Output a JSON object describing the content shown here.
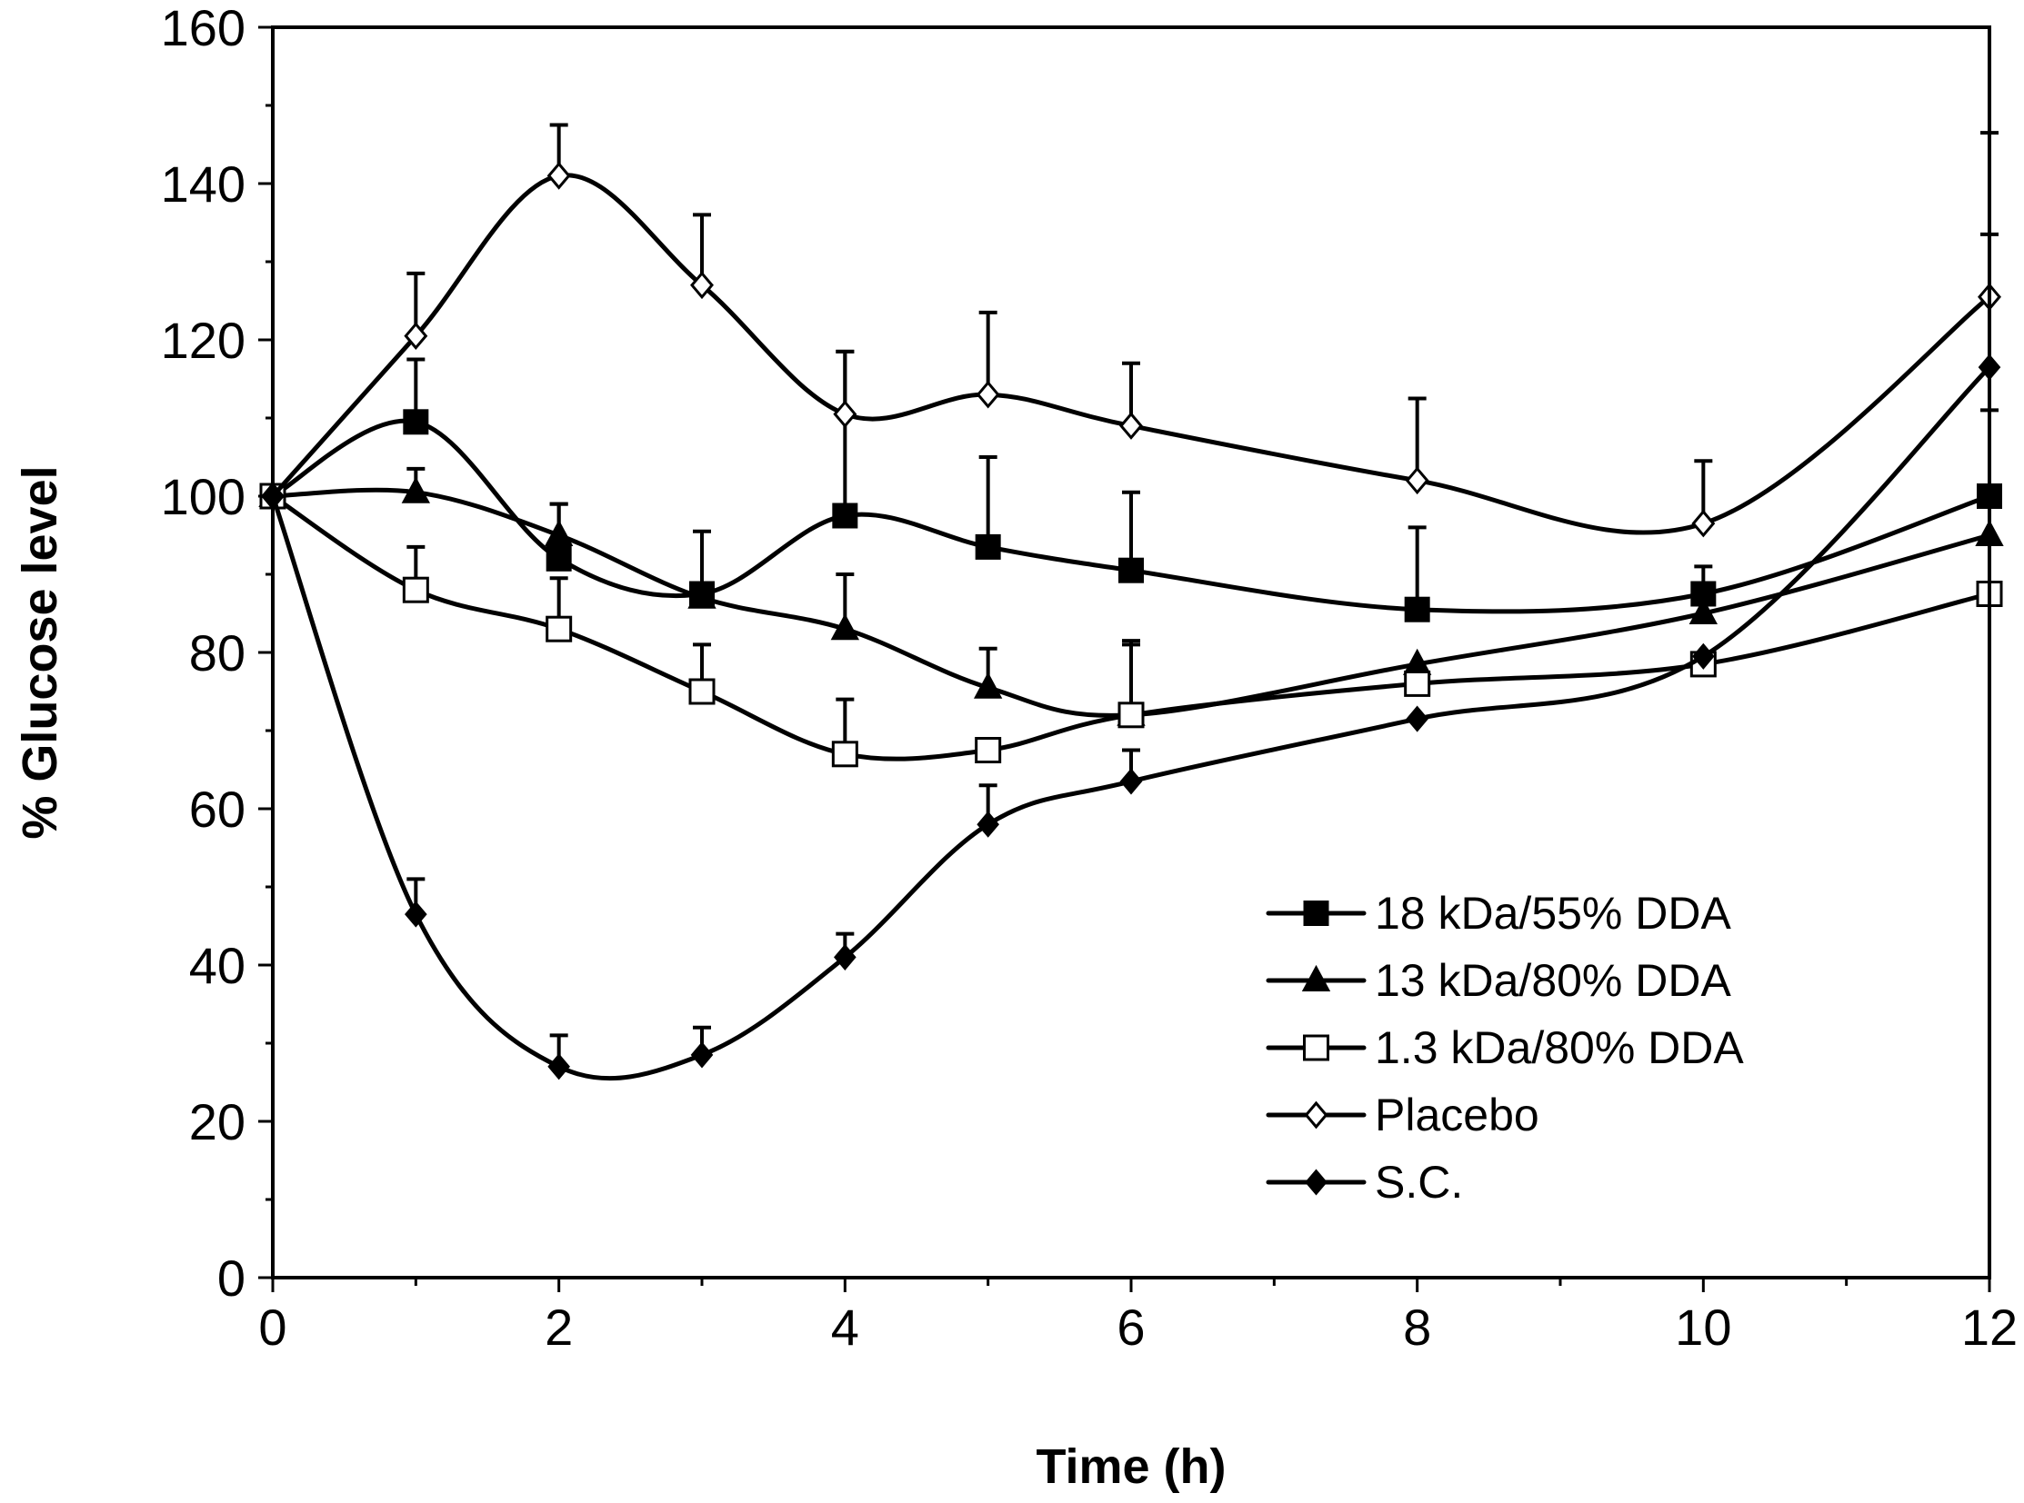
{
  "chart_data": {
    "type": "line",
    "title": "",
    "xlabel": "Time (h)",
    "ylabel": "% Glucose level",
    "xlim": [
      0,
      12
    ],
    "ylim": [
      0,
      160
    ],
    "xticks": [
      0,
      2,
      4,
      6,
      8,
      10,
      12
    ],
    "yticks": [
      0,
      20,
      40,
      60,
      80,
      100,
      120,
      140,
      160
    ],
    "x": [
      0,
      1,
      2,
      3,
      4,
      5,
      6,
      8,
      10,
      12
    ],
    "legend_position": "bottom-right",
    "series": [
      {
        "name": "18 kDa/55% DDA",
        "marker": "square-filled",
        "values": [
          100,
          109.5,
          92,
          87.5,
          97.5,
          93.5,
          90.5,
          85.5,
          87.5,
          100
        ],
        "error": [
          0,
          8,
          7,
          8,
          21,
          11.5,
          10,
          10.5,
          3.5,
          11
        ]
      },
      {
        "name": "13 kDa/80% DDA",
        "marker": "triangle-filled",
        "values": [
          100,
          100.5,
          95,
          87,
          83,
          75.5,
          72,
          78.5,
          85,
          95
        ],
        "error": [
          0,
          3,
          4,
          0,
          7,
          5,
          9.5,
          0,
          0,
          0
        ]
      },
      {
        "name": "1.3 kDa/80% DDA",
        "marker": "square-open",
        "values": [
          100,
          88,
          83,
          75,
          67,
          67.5,
          72,
          76,
          78.5,
          87.5
        ],
        "error": [
          0,
          5.5,
          6.5,
          6,
          7,
          0,
          9,
          0,
          0,
          0
        ]
      },
      {
        "name": "Placebo",
        "marker": "diamond-open",
        "values": [
          100,
          120.5,
          141,
          127,
          110.5,
          113,
          109,
          102,
          96.5,
          125.5
        ],
        "error": [
          0,
          8,
          6.5,
          9,
          8,
          10.5,
          8,
          10.5,
          8,
          21
        ]
      },
      {
        "name": "S.C.",
        "marker": "diamond-filled",
        "values": [
          100,
          46.5,
          27,
          28.5,
          41,
          58,
          63.5,
          71.5,
          79.5,
          116.5
        ],
        "error": [
          0,
          4.5,
          4,
          3.5,
          3,
          5,
          4,
          0,
          0,
          17
        ]
      }
    ]
  }
}
